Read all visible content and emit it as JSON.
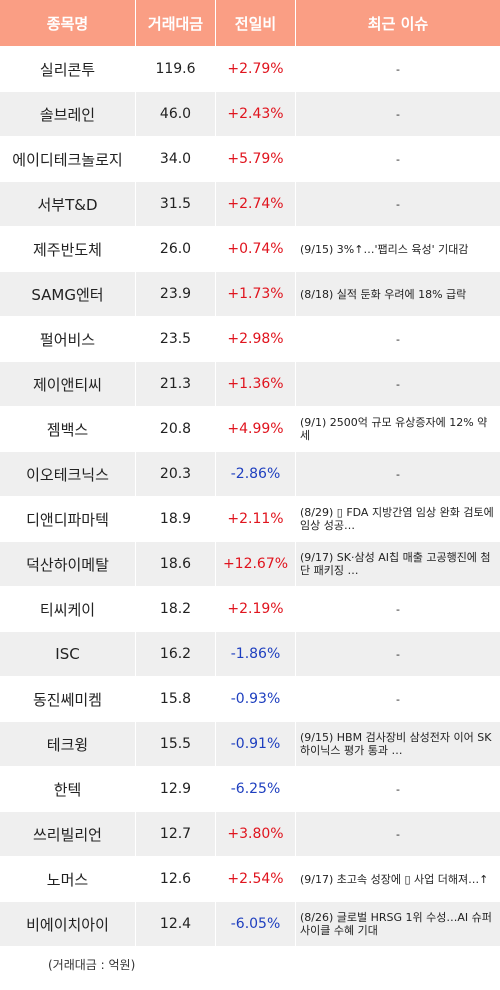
{
  "header": {
    "name": "종목명",
    "volume": "거래대금",
    "change": "전일비",
    "issue": "최근 이슈"
  },
  "rows": [
    {
      "name": "실리콘투",
      "volume": "119.6",
      "change": "+2.79%",
      "dir": "up",
      "issue": "-"
    },
    {
      "name": "솔브레인",
      "volume": "46.0",
      "change": "+2.43%",
      "dir": "up",
      "issue": "-"
    },
    {
      "name": "에이디테크놀로지",
      "volume": "34.0",
      "change": "+5.79%",
      "dir": "up",
      "issue": "-"
    },
    {
      "name": "서부T&D",
      "volume": "31.5",
      "change": "+2.74%",
      "dir": "up",
      "issue": "-"
    },
    {
      "name": "제주반도체",
      "volume": "26.0",
      "change": "+0.74%",
      "dir": "up",
      "issue": "(9/15) 3%↑…'팹리스 육성' 기대감"
    },
    {
      "name": "SAMG엔터",
      "volume": "23.9",
      "change": "+1.73%",
      "dir": "up",
      "issue": "(8/18) 실적 둔화 우려에 18% 급락"
    },
    {
      "name": "펄어비스",
      "volume": "23.5",
      "change": "+2.98%",
      "dir": "up",
      "issue": "-"
    },
    {
      "name": "제이앤티씨",
      "volume": "21.3",
      "change": "+1.36%",
      "dir": "up",
      "issue": "-"
    },
    {
      "name": "젬백스",
      "volume": "20.8",
      "change": "+4.99%",
      "dir": "up",
      "issue": "(9/1) 2500억 규모 유상증자에 12% 약세"
    },
    {
      "name": "이오테크닉스",
      "volume": "20.3",
      "change": "-2.86%",
      "dir": "down",
      "issue": "-"
    },
    {
      "name": "디앤디파마텍",
      "volume": "18.9",
      "change": "+2.11%",
      "dir": "up",
      "issue": "(8/29) ▯ FDA 지방간염 임상 완화 검토에 임상 성공…"
    },
    {
      "name": "덕산하이메탈",
      "volume": "18.6",
      "change": "+12.67%",
      "dir": "up",
      "issue": "(9/17) SK·삼성 AI칩 매출 고공행진에 첨단 패키징 …"
    },
    {
      "name": "티씨케이",
      "volume": "18.2",
      "change": "+2.19%",
      "dir": "up",
      "issue": "-"
    },
    {
      "name": "ISC",
      "volume": "16.2",
      "change": "-1.86%",
      "dir": "down",
      "issue": "-"
    },
    {
      "name": "동진쎄미켐",
      "volume": "15.8",
      "change": "-0.93%",
      "dir": "down",
      "issue": "-"
    },
    {
      "name": "테크윙",
      "volume": "15.5",
      "change": "-0.91%",
      "dir": "down",
      "issue": "(9/15) HBM 검사장비 삼성전자 이어 SK하이닉스 평가 통과 …"
    },
    {
      "name": "한텍",
      "volume": "12.9",
      "change": "-6.25%",
      "dir": "down",
      "issue": "-"
    },
    {
      "name": "쓰리빌리언",
      "volume": "12.7",
      "change": "+3.80%",
      "dir": "up",
      "issue": "-"
    },
    {
      "name": "노머스",
      "volume": "12.6",
      "change": "+2.54%",
      "dir": "up",
      "issue": "(9/17) 초고속 성장에 ▯ 사업 더해져…↑"
    },
    {
      "name": "비에이치아이",
      "volume": "12.4",
      "change": "-6.05%",
      "dir": "down",
      "issue": "(8/26) 글로벌 HRSG 1위 수성…AI 슈퍼사이클 수혜 기대"
    }
  ],
  "footnote": "(거래대금 : 억원)",
  "colors": {
    "header_bg": "#fa9e84",
    "up": "#e0141e",
    "down": "#1e3fbf",
    "row_alt": "#efefef"
  }
}
